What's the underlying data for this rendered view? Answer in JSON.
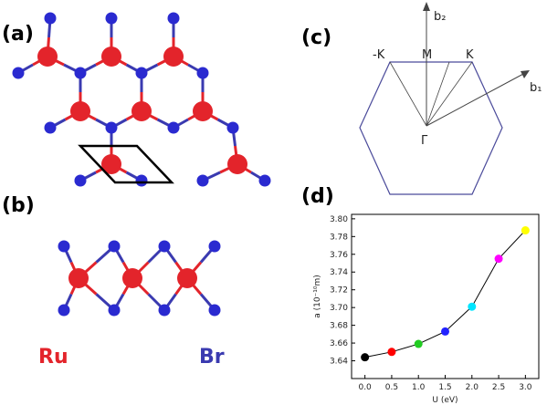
{
  "panels": {
    "a": "(a)",
    "b": "(b)",
    "c": "(c)",
    "d": "(d)"
  },
  "legend": {
    "ru": "Ru",
    "br": "Br"
  },
  "brillouin_zone": {
    "minus_k": "-K",
    "m": "M",
    "k": "K",
    "b2": "b₂",
    "b1": "b₁",
    "gamma": "Γ"
  },
  "chart_data": {
    "type": "line",
    "x_label": "U (eV)",
    "y_label": "a (10⁻¹⁰m)",
    "x": [
      0.0,
      0.5,
      1.0,
      1.5,
      2.0,
      2.5,
      3.0
    ],
    "series": [
      {
        "color": "#000000",
        "values": [
          3.644,
          3.65,
          3.659,
          3.673,
          3.701,
          3.755,
          3.787
        ]
      }
    ],
    "marker_colors": [
      "#000000",
      "#ff0000",
      "#22cc22",
      "#2222ff",
      "#00e5ff",
      "#ff00ff",
      "#ffff00"
    ],
    "xlim": [
      -0.25,
      3.25
    ],
    "xticks": [
      {
        "value": 0.0,
        "label": "0.0"
      },
      0.5,
      {
        "value": 1.0,
        "label": "1.0"
      },
      1.5,
      {
        "value": 2.0,
        "label": "2.0"
      },
      2.5,
      {
        "value": 3.0,
        "label": "3.0"
      }
    ],
    "ylim": [
      3.62,
      3.805
    ],
    "yticks": [
      3.64,
      3.66,
      3.68,
      {
        "value": 3.7,
        "label": "3.70"
      },
      3.72,
      3.74,
      3.76,
      3.78,
      {
        "value": 3.8,
        "label": "3.80"
      }
    ]
  }
}
